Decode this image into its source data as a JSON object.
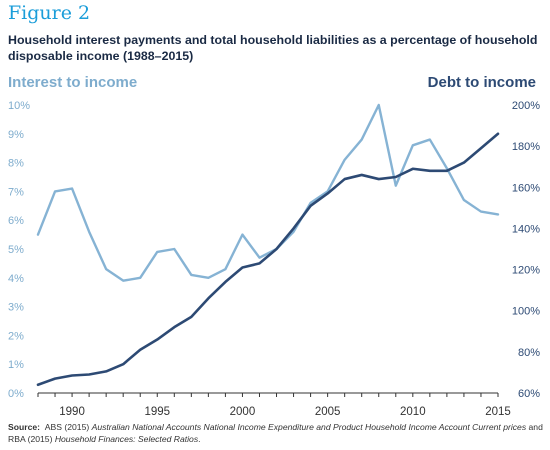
{
  "figure_label": "Figure 2",
  "title": "Household interest payments and total household liabilities as a percentage of household disposable income (1988–2015)",
  "colors": {
    "interest_line": "#86b3d4",
    "debt_line": "#2d4a74",
    "left_axis_text": "#7eaccd",
    "right_axis_text": "#2d4a74",
    "figure_label": "#1b9dd9"
  },
  "chart_data": {
    "type": "line",
    "title": "Household interest payments and total household liabilities as a percentage of household disposable income (1988–2015)",
    "x": [
      1988,
      1989,
      1990,
      1991,
      1992,
      1993,
      1994,
      1995,
      1996,
      1997,
      1998,
      1999,
      2000,
      2001,
      2002,
      2003,
      2004,
      2005,
      2006,
      2007,
      2008,
      2009,
      2010,
      2011,
      2012,
      2013,
      2014,
      2015
    ],
    "xlim": [
      1988,
      2015
    ],
    "x_ticks": [
      "1990",
      "1995",
      "2000",
      "2005",
      "2010",
      "2015"
    ],
    "series": [
      {
        "name": "Interest to income",
        "axis": "left",
        "values": [
          5.5,
          7.0,
          7.1,
          5.6,
          4.3,
          3.9,
          4.0,
          4.9,
          5.0,
          4.1,
          4.0,
          4.3,
          5.5,
          4.7,
          5.0,
          5.6,
          6.6,
          7.0,
          8.1,
          8.8,
          10.0,
          7.2,
          8.6,
          8.8,
          7.8,
          6.7,
          6.3,
          6.2
        ]
      },
      {
        "name": "Debt to income",
        "axis": "right",
        "values": [
          64,
          67,
          68.5,
          69,
          70.5,
          74,
          81,
          86,
          92,
          97,
          106,
          114,
          121,
          123,
          130,
          140,
          151,
          157,
          164,
          166,
          164,
          165,
          169,
          168,
          168,
          172,
          179,
          186
        ]
      }
    ],
    "left_axis": {
      "label": "Interest to income",
      "ylim": [
        0,
        10
      ],
      "ticks": [
        "0%",
        "1%",
        "2%",
        "3%",
        "4%",
        "5%",
        "6%",
        "7%",
        "8%",
        "9%",
        "10%"
      ]
    },
    "right_axis": {
      "label": "Debt to income",
      "ylim": [
        60,
        200
      ],
      "ticks": [
        "60%",
        "80%",
        "100%",
        "120%",
        "140%",
        "160%",
        "180%",
        "200%"
      ]
    },
    "grid": false,
    "legend": "none"
  },
  "source": {
    "label": "Source:",
    "text1": "ABS (2015) ",
    "italic1": "Australian National Accounts National Income Expenditure and Product Household Income Account Current prices",
    "text2": " and RBA (2015) ",
    "italic2": "Household Finances: Selected Ratios",
    "text3": "."
  }
}
